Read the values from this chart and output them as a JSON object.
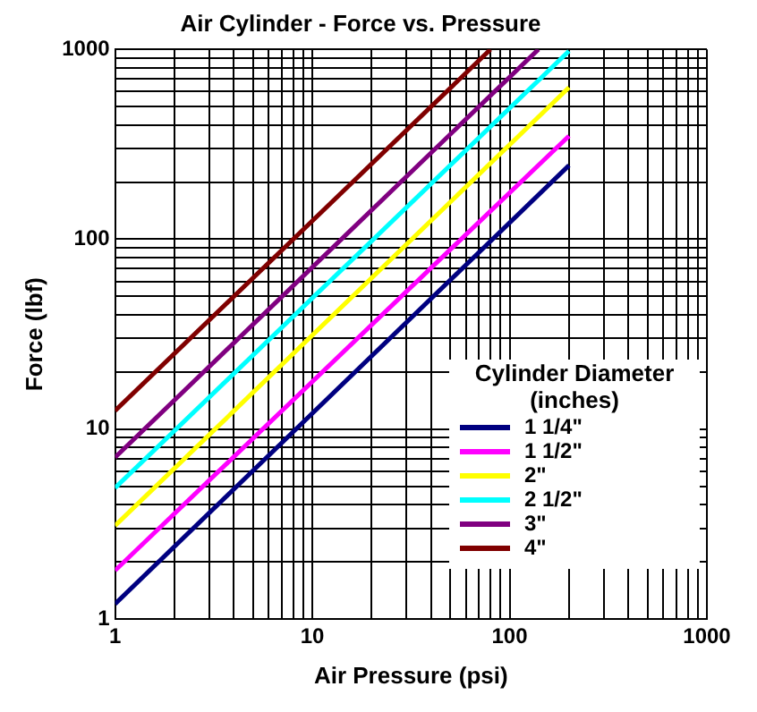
{
  "chart_data": {
    "type": "line",
    "title": "Air Cylinder - Force vs. Pressure",
    "xlabel": "Air Pressure (psi)",
    "ylabel": "Force (lbf)",
    "legend_title": "Cylinder Diameter (inches)",
    "log": "xy",
    "grid": true,
    "legend": "right",
    "marker": "none",
    "line_style": "solid",
    "xlim": [
      1,
      1000
    ],
    "ylim": [
      1,
      1000
    ],
    "xticks": [
      1,
      {
        "value": 2,
        "label": null
      },
      {
        "value": 3,
        "label": null
      },
      {
        "value": 4,
        "label": null
      },
      {
        "value": 5,
        "label": null
      },
      {
        "value": 6,
        "label": null
      },
      {
        "value": 7,
        "label": null
      },
      {
        "value": 8,
        "label": null
      },
      {
        "value": 9,
        "label": null
      },
      10,
      {
        "value": 20,
        "label": null
      },
      {
        "value": 30,
        "label": null
      },
      {
        "value": 40,
        "label": null
      },
      {
        "value": 50,
        "label": null
      },
      {
        "value": 60,
        "label": null
      },
      {
        "value": 70,
        "label": null
      },
      {
        "value": 80,
        "label": null
      },
      {
        "value": 90,
        "label": null
      },
      100,
      {
        "value": 200,
        "label": null
      },
      {
        "value": 300,
        "label": null
      },
      {
        "value": 400,
        "label": null
      },
      {
        "value": 500,
        "label": null
      },
      {
        "value": 600,
        "label": null
      },
      {
        "value": 700,
        "label": null
      },
      {
        "value": 800,
        "label": null
      },
      {
        "value": 900,
        "label": null
      },
      1000
    ],
    "yticks": [
      1,
      {
        "value": 2,
        "label": null
      },
      {
        "value": 3,
        "label": null
      },
      {
        "value": 4,
        "label": null
      },
      {
        "value": 5,
        "label": null
      },
      {
        "value": 6,
        "label": null
      },
      {
        "value": 7,
        "label": null
      },
      {
        "value": 8,
        "label": null
      },
      {
        "value": 9,
        "label": null
      },
      10,
      {
        "value": 20,
        "label": null
      },
      {
        "value": 30,
        "label": null
      },
      {
        "value": 40,
        "label": null
      },
      {
        "value": 50,
        "label": null
      },
      {
        "value": 60,
        "label": null
      },
      {
        "value": 70,
        "label": null
      },
      {
        "value": 80,
        "label": null
      },
      {
        "value": 90,
        "label": null
      },
      100,
      {
        "value": 200,
        "label": null
      },
      {
        "value": 300,
        "label": null
      },
      {
        "value": 400,
        "label": null
      },
      {
        "value": 500,
        "label": null
      },
      {
        "value": 600,
        "label": null
      },
      {
        "value": 700,
        "label": null
      },
      {
        "value": 800,
        "label": null
      },
      {
        "value": 900,
        "label": null
      },
      1000
    ],
    "series": [
      {
        "name": "1 1/4\"",
        "color": "#000080",
        "x": [
          1,
          200
        ],
        "values": [
          1.2,
          245
        ]
      },
      {
        "name": "1 1/2\"",
        "color": "#ff00ff",
        "x": [
          1,
          200
        ],
        "values": [
          1.8,
          350
        ]
      },
      {
        "name": "2\"",
        "color": "#ffff00",
        "x": [
          1,
          200
        ],
        "values": [
          3.1,
          630
        ]
      },
      {
        "name": "2 1/2\"",
        "color": "#00ffff",
        "x": [
          1,
          200
        ],
        "values": [
          4.9,
          980
        ]
      },
      {
        "name": "3\"",
        "color": "#800080",
        "x": [
          1,
          140
        ],
        "values": [
          7.1,
          1000
        ]
      },
      {
        "name": "4\"",
        "color": "#800000",
        "x": [
          1,
          80
        ],
        "values": [
          12.5,
          1000
        ]
      }
    ]
  }
}
